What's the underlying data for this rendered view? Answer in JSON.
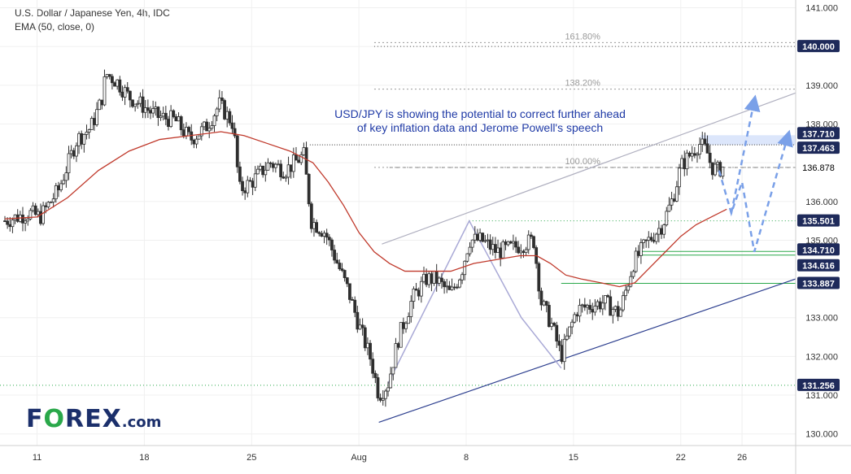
{
  "header": {
    "title": "U.S. Dollar / Japanese Yen, 4h, IDC",
    "indicator": "EMA (50, close, 0)"
  },
  "annotation": {
    "line1": "USD/JPY is showing the potential to correct further ahead",
    "line2": "of key inflation data and Jerome Powell's speech",
    "color": "#1f3aa6"
  },
  "logo": {
    "part1": "F",
    "part2": "O",
    "part3": "REX",
    "part4": ".com"
  },
  "chart_data": {
    "type": "candlestick",
    "title": "U.S. Dollar / Japanese Yen, 4h, IDC",
    "ylim": [
      129.7,
      141.2
    ],
    "y_ticks": [
      130.0,
      131.0,
      132.0,
      133.0,
      134.0,
      135.0,
      136.0,
      137.0,
      138.0,
      139.0,
      140.0,
      141.0
    ],
    "y_tick_labels": [
      "130.000",
      "131.000",
      "132.000",
      "133.000",
      "",
      "135.000",
      "136.000",
      "",
      "138.000",
      "139.000",
      "",
      "141.000"
    ],
    "x_ticks": [
      {
        "label": "11",
        "day": 11
      },
      {
        "label": "18",
        "day": 18
      },
      {
        "label": "25",
        "day": 25
      },
      {
        "label": "Aug",
        "day": 32
      },
      {
        "label": "8",
        "day": 39
      },
      {
        "label": "15",
        "day": 46
      },
      {
        "label": "22",
        "day": 53
      },
      {
        "label": "26",
        "day": 57
      }
    ],
    "x_range_days": [
      8.9,
      60.5
    ],
    "close_path": [
      [
        8.9,
        135.5
      ],
      [
        10.5,
        135.7
      ],
      [
        11.2,
        135.6
      ],
      [
        12.4,
        136.3
      ],
      [
        13.6,
        137.6
      ],
      [
        14.5,
        137.9
      ],
      [
        15.2,
        138.6
      ],
      [
        15.5,
        139.3
      ],
      [
        16.2,
        139.1
      ],
      [
        17.0,
        138.7
      ],
      [
        17.8,
        138.5
      ],
      [
        18.8,
        138.2
      ],
      [
        20.0,
        138.1
      ],
      [
        21.0,
        137.6
      ],
      [
        22.0,
        137.9
      ],
      [
        22.9,
        138.5
      ],
      [
        23.8,
        138.0
      ],
      [
        24.2,
        136.3
      ],
      [
        25.0,
        136.5
      ],
      [
        26.2,
        137.0
      ],
      [
        27.2,
        136.8
      ],
      [
        28.4,
        137.2
      ],
      [
        28.9,
        135.5
      ],
      [
        29.8,
        135.2
      ],
      [
        30.6,
        134.4
      ],
      [
        31.3,
        133.7
      ],
      [
        32.0,
        132.8
      ],
      [
        32.8,
        131.9
      ],
      [
        33.3,
        131.0
      ],
      [
        33.9,
        131.3
      ],
      [
        34.6,
        132.5
      ],
      [
        35.5,
        133.5
      ],
      [
        36.4,
        134.0
      ],
      [
        37.0,
        134.0
      ],
      [
        38.0,
        133.6
      ],
      [
        38.7,
        134.2
      ],
      [
        39.2,
        135.0
      ],
      [
        40.0,
        135.0
      ],
      [
        41.0,
        134.7
      ],
      [
        42.0,
        134.8
      ],
      [
        43.4,
        135.0
      ],
      [
        43.9,
        133.4
      ],
      [
        44.6,
        132.8
      ],
      [
        45.2,
        132.0
      ],
      [
        46.2,
        133.2
      ],
      [
        47.0,
        133.3
      ],
      [
        48.0,
        133.4
      ],
      [
        49.0,
        133.1
      ],
      [
        49.9,
        134.4
      ],
      [
        50.7,
        134.9
      ],
      [
        51.8,
        135.4
      ],
      [
        52.5,
        136.1
      ],
      [
        53.0,
        136.9
      ],
      [
        53.6,
        137.2
      ],
      [
        54.2,
        137.5
      ],
      [
        54.7,
        137.3
      ],
      [
        55.0,
        136.9
      ],
      [
        55.4,
        136.8
      ],
      [
        55.8,
        136.9
      ]
    ],
    "ema_50": [
      [
        8.9,
        135.55
      ],
      [
        11.0,
        135.6
      ],
      [
        13.0,
        136.1
      ],
      [
        15.0,
        136.8
      ],
      [
        17.0,
        137.3
      ],
      [
        19.0,
        137.6
      ],
      [
        21.0,
        137.7
      ],
      [
        23.0,
        137.8
      ],
      [
        24.5,
        137.7
      ],
      [
        26.0,
        137.5
      ],
      [
        27.5,
        137.3
      ],
      [
        29.0,
        137.0
      ],
      [
        30.0,
        136.5
      ],
      [
        31.0,
        135.9
      ],
      [
        32.0,
        135.2
      ],
      [
        33.0,
        134.7
      ],
      [
        34.0,
        134.4
      ],
      [
        35.0,
        134.2
      ],
      [
        36.5,
        134.2
      ],
      [
        38.0,
        134.2
      ],
      [
        39.5,
        134.4
      ],
      [
        41.0,
        134.5
      ],
      [
        42.5,
        134.6
      ],
      [
        43.6,
        134.6
      ],
      [
        44.5,
        134.4
      ],
      [
        45.5,
        134.1
      ],
      [
        46.5,
        134.0
      ],
      [
        47.8,
        133.9
      ],
      [
        49.0,
        133.8
      ],
      [
        50.0,
        133.9
      ],
      [
        51.0,
        134.3
      ],
      [
        52.0,
        134.7
      ],
      [
        53.0,
        135.1
      ],
      [
        54.0,
        135.4
      ],
      [
        55.0,
        135.6
      ],
      [
        56.0,
        135.8
      ]
    ],
    "horizontal_levels": [
      {
        "value": 140.0,
        "label": "140.000",
        "style": "dotted",
        "color": "#555555",
        "label_bg": "#1e2a5a"
      },
      {
        "value": 137.71,
        "label": "137.710",
        "style": "zone",
        "color": "#9bb2f0",
        "label_bg": "#1e2a5a"
      },
      {
        "value": 137.463,
        "label": "137.463",
        "style": "zone",
        "color": "#9bb2f0",
        "label_bg": "#1e2a5a"
      },
      {
        "value": 136.878,
        "label": "136.878",
        "style": "plain",
        "color": "#000000",
        "label_bg": ""
      },
      {
        "value": 135.501,
        "label": "135.501",
        "style": "dotted",
        "color": "#2aa84a",
        "label_bg": "#1e2a5a"
      },
      {
        "value": 134.71,
        "label": "134.710",
        "style": "solid",
        "color": "#2aa84a",
        "label_bg": "#1e2a5a"
      },
      {
        "value": 134.616,
        "label": "134.616",
        "style": "solid",
        "color": "#2aa84a",
        "label_bg": "#1e2a5a"
      },
      {
        "value": 133.887,
        "label": "133.887",
        "style": "solid",
        "color": "#2aa84a",
        "label_bg": "#1e2a5a"
      },
      {
        "value": 131.256,
        "label": "131.256",
        "style": "dotted",
        "color": "#2aa84a",
        "label_bg": "#1e2a5a"
      }
    ],
    "fibonacci": [
      {
        "label": "161.80%",
        "value": 140.1
      },
      {
        "label": "138.20%",
        "value": 138.9
      },
      {
        "label": "100.00%",
        "value": 136.88
      }
    ],
    "trendlines": [
      {
        "from": [
          33.3,
          130.3
        ],
        "to": [
          60.5,
          134.0
        ],
        "color": "#2d3f8f"
      },
      {
        "from": [
          33.5,
          134.9
        ],
        "to": [
          60.5,
          138.8
        ],
        "color": "#b0b0c0"
      }
    ],
    "projection": [
      [
        55.5,
        136.8
      ],
      [
        56.3,
        135.7
      ],
      [
        57.0,
        136.5
      ],
      [
        57.8,
        134.7
      ],
      [
        60.0,
        137.7
      ]
    ],
    "projection_alt": [
      [
        56.3,
        135.7
      ],
      [
        57.8,
        138.6
      ]
    ],
    "colors": {
      "up": "#26a69a",
      "down": "#26a69a",
      "candle": "#2f2f2f",
      "ema": "#c0392b",
      "projection": "#7aa0e8",
      "price_line": "#000000"
    }
  }
}
